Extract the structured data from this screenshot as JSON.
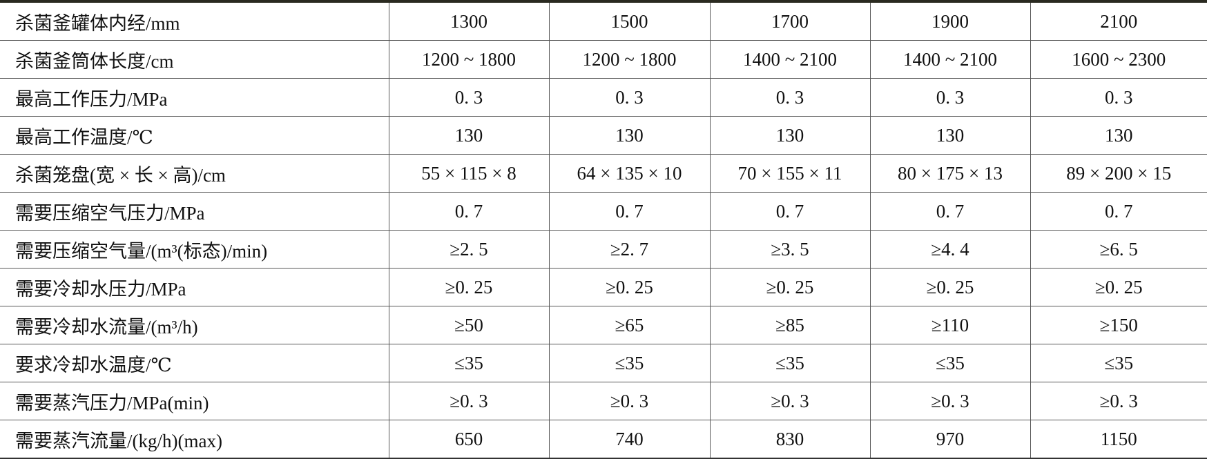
{
  "table": {
    "rows": [
      [
        "杀菌釜罐体内经/mm",
        "1300",
        "1500",
        "1700",
        "1900",
        "2100"
      ],
      [
        "杀菌釜筒体长度/cm",
        "1200 ~ 1800",
        "1200 ~ 1800",
        "1400 ~ 2100",
        "1400 ~ 2100",
        "1600 ~ 2300"
      ],
      [
        "最高工作压力/MPa",
        "0. 3",
        "0. 3",
        "0. 3",
        "0. 3",
        "0. 3"
      ],
      [
        "最高工作温度/℃",
        "130",
        "130",
        "130",
        "130",
        "130"
      ],
      [
        "杀菌笼盘(宽 × 长 × 高)/cm",
        "55 × 115 × 8",
        "64 × 135 × 10",
        "70 × 155 × 11",
        "80 × 175 × 13",
        "89 × 200 × 15"
      ],
      [
        "需要压缩空气压力/MPa",
        "0. 7",
        "0. 7",
        "0. 7",
        "0. 7",
        "0. 7"
      ],
      [
        "需要压缩空气量/(m³(标态)/min)",
        "≥2. 5",
        "≥2. 7",
        "≥3. 5",
        "≥4. 4",
        "≥6. 5"
      ],
      [
        "需要冷却水压力/MPa",
        "≥0. 25",
        "≥0. 25",
        "≥0. 25",
        "≥0. 25",
        "≥0. 25"
      ],
      [
        "需要冷却水流量/(m³/h)",
        "≥50",
        "≥65",
        "≥85",
        "≥110",
        "≥150"
      ],
      [
        "要求冷却水温度/℃",
        "≤35",
        "≤35",
        "≤35",
        "≤35",
        "≤35"
      ],
      [
        "需要蒸汽压力/MPa(min)",
        "≥0. 3",
        "≥0. 3",
        "≥0. 3",
        "≥0. 3",
        "≥0. 3"
      ],
      [
        "需要蒸汽流量/(kg/h)(max)",
        "650",
        "740",
        "830",
        "970",
        "1150"
      ]
    ]
  }
}
